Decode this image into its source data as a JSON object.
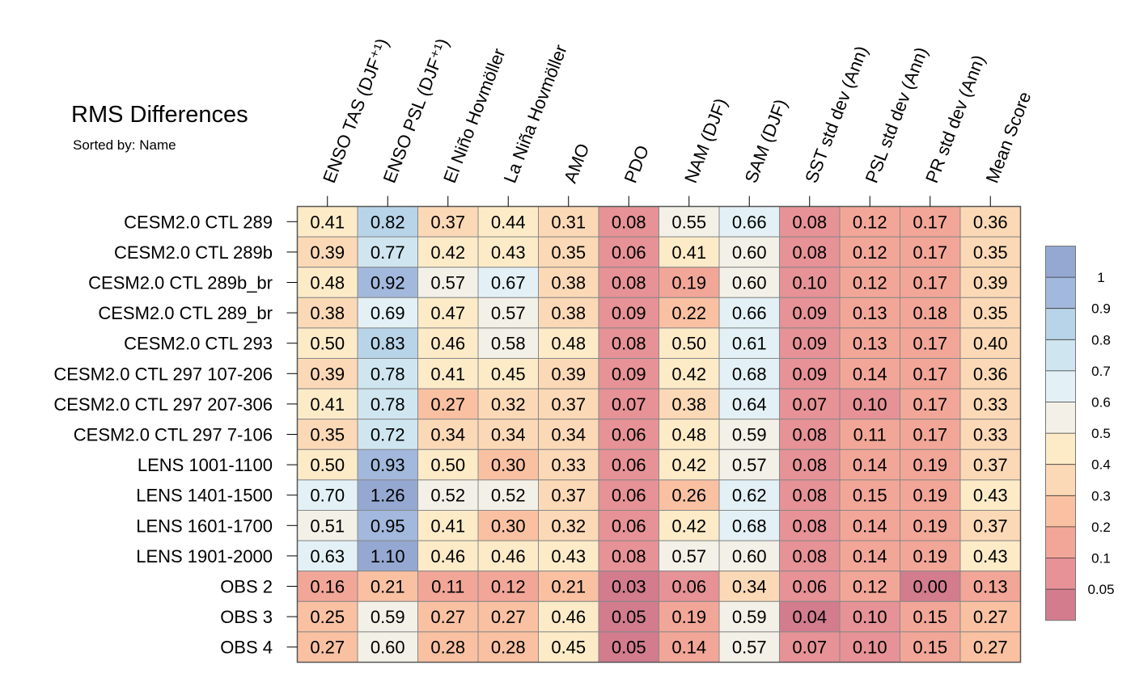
{
  "colors": {
    "scale": [
      "#d27c8e",
      "#e69296",
      "#f2a698",
      "#f9c1a2",
      "#fcd9b6",
      "#fdebc8",
      "#f3f1e7",
      "#e3f1f6",
      "#cfe6f0",
      "#b8d4e8",
      "#a2b8dc",
      "#95a8d2"
    ],
    "grid": "#888888",
    "text": "#000000"
  },
  "chart_data": {
    "type": "heatmap",
    "title": "RMS Differences",
    "subtitle": "Sorted by: Name",
    "columns": [
      "ENSO TAS (DJF⁺¹)",
      "ENSO PSL (DJF⁺¹)",
      "El Niño Hovmöller",
      "La Niña Hovmöller",
      "AMO",
      "PDO",
      "NAM (DJF)",
      "SAM (DJF)",
      "SST std dev (Ann)",
      "PSL std dev (Ann)",
      "PR std dev (Ann)",
      "Mean Score"
    ],
    "rows": [
      "CESM2.0 CTL 289",
      "CESM2.0 CTL 289b",
      "CESM2.0 CTL 289b_br",
      "CESM2.0 CTL 289_br",
      "CESM2.0 CTL 293",
      "CESM2.0 CTL 297 107-206",
      "CESM2.0 CTL 297 207-306",
      "CESM2.0 CTL 297 7-106",
      "LENS 1001-1100",
      "LENS 1401-1500",
      "LENS 1601-1700",
      "LENS 1901-2000",
      "OBS 2",
      "OBS 3",
      "OBS 4"
    ],
    "values": [
      [
        "0.41",
        "0.82",
        "0.37",
        "0.44",
        "0.31",
        "0.08",
        "0.55",
        "0.66",
        "0.08",
        "0.12",
        "0.17",
        "0.36"
      ],
      [
        "0.39",
        "0.77",
        "0.42",
        "0.43",
        "0.35",
        "0.06",
        "0.41",
        "0.60",
        "0.08",
        "0.12",
        "0.17",
        "0.35"
      ],
      [
        "0.48",
        "0.92",
        "0.57",
        "0.67",
        "0.38",
        "0.08",
        "0.19",
        "0.60",
        "0.10",
        "0.12",
        "0.17",
        "0.39"
      ],
      [
        "0.38",
        "0.69",
        "0.47",
        "0.57",
        "0.38",
        "0.09",
        "0.22",
        "0.66",
        "0.09",
        "0.13",
        "0.18",
        "0.35"
      ],
      [
        "0.50",
        "0.83",
        "0.46",
        "0.58",
        "0.48",
        "0.08",
        "0.50",
        "0.61",
        "0.09",
        "0.13",
        "0.17",
        "0.40"
      ],
      [
        "0.39",
        "0.78",
        "0.41",
        "0.45",
        "0.39",
        "0.09",
        "0.42",
        "0.68",
        "0.09",
        "0.14",
        "0.17",
        "0.36"
      ],
      [
        "0.41",
        "0.78",
        "0.27",
        "0.32",
        "0.37",
        "0.07",
        "0.38",
        "0.64",
        "0.07",
        "0.10",
        "0.17",
        "0.33"
      ],
      [
        "0.35",
        "0.72",
        "0.34",
        "0.34",
        "0.34",
        "0.06",
        "0.48",
        "0.59",
        "0.08",
        "0.11",
        "0.17",
        "0.33"
      ],
      [
        "0.50",
        "0.93",
        "0.50",
        "0.30",
        "0.33",
        "0.06",
        "0.42",
        "0.57",
        "0.08",
        "0.14",
        "0.19",
        "0.37"
      ],
      [
        "0.70",
        "1.26",
        "0.52",
        "0.52",
        "0.37",
        "0.06",
        "0.26",
        "0.62",
        "0.08",
        "0.15",
        "0.19",
        "0.43"
      ],
      [
        "0.51",
        "0.95",
        "0.41",
        "0.30",
        "0.32",
        "0.06",
        "0.42",
        "0.68",
        "0.08",
        "0.14",
        "0.19",
        "0.37"
      ],
      [
        "0.63",
        "1.10",
        "0.46",
        "0.46",
        "0.43",
        "0.08",
        "0.57",
        "0.60",
        "0.08",
        "0.14",
        "0.19",
        "0.43"
      ],
      [
        "0.16",
        "0.21",
        "0.11",
        "0.12",
        "0.21",
        "0.03",
        "0.06",
        "0.34",
        "0.06",
        "0.12",
        "0.00",
        "0.13"
      ],
      [
        "0.25",
        "0.59",
        "0.27",
        "0.27",
        "0.46",
        "0.05",
        "0.19",
        "0.59",
        "0.04",
        "0.10",
        "0.15",
        "0.27"
      ],
      [
        "0.27",
        "0.60",
        "0.28",
        "0.28",
        "0.45",
        "0.05",
        "0.14",
        "0.57",
        "0.07",
        "0.10",
        "0.15",
        "0.27"
      ]
    ],
    "legend": {
      "labels": [
        "1",
        "0.9",
        "0.8",
        "0.7",
        "0.6",
        "0.5",
        "0.4",
        "0.3",
        "0.2",
        "0.1",
        "0.05"
      ],
      "thresholds": [
        0.05,
        0.1,
        0.2,
        0.3,
        0.4,
        0.5,
        0.6,
        0.7,
        0.8,
        0.9,
        1.0
      ],
      "placement": "right"
    }
  }
}
